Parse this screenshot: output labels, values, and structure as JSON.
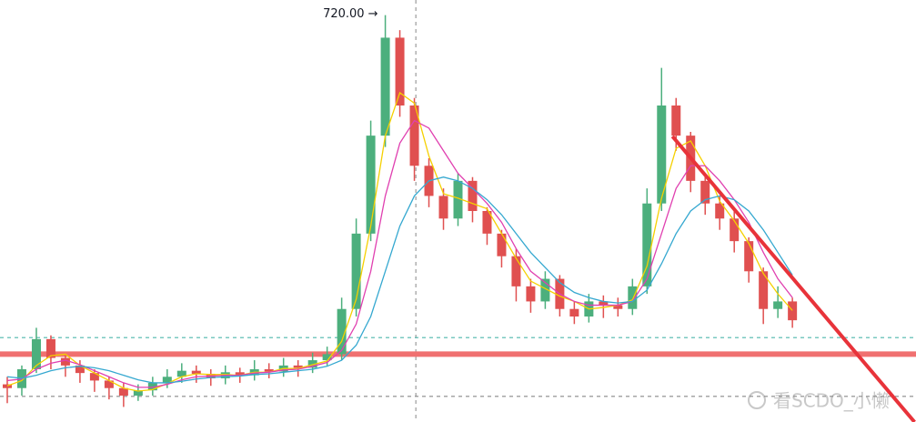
{
  "chart_data": {
    "type": "candlestick",
    "xlim": [
      0,
      63
    ],
    "ylim": [
      180,
      740
    ],
    "up_color": "#4caf7d",
    "down_color": "#e05050",
    "open": [
      230,
      225,
      250,
      290,
      265,
      255,
      245,
      235,
      225,
      215,
      222,
      232,
      240,
      248,
      244,
      238,
      246,
      242,
      250,
      247,
      255,
      252,
      262,
      270,
      330,
      430,
      560,
      690,
      600,
      520,
      480,
      450,
      500,
      460,
      430,
      400,
      360,
      340,
      370,
      330,
      320,
      340,
      335,
      330,
      360,
      470,
      600,
      560,
      500,
      470,
      450,
      420,
      380,
      330,
      340
    ],
    "high": [
      240,
      255,
      305,
      295,
      270,
      262,
      250,
      240,
      232,
      230,
      240,
      250,
      258,
      255,
      250,
      255,
      252,
      262,
      258,
      265,
      262,
      272,
      280,
      345,
      450,
      580,
      720,
      700,
      610,
      530,
      490,
      510,
      505,
      465,
      435,
      410,
      370,
      380,
      375,
      340,
      350,
      348,
      345,
      370,
      490,
      650,
      610,
      565,
      510,
      480,
      460,
      425,
      385,
      360,
      345
    ],
    "low": [
      205,
      215,
      245,
      250,
      240,
      232,
      220,
      210,
      200,
      208,
      215,
      225,
      232,
      232,
      228,
      230,
      232,
      235,
      238,
      240,
      240,
      245,
      255,
      262,
      320,
      420,
      545,
      585,
      500,
      465,
      435,
      440,
      445,
      415,
      385,
      340,
      325,
      330,
      320,
      310,
      312,
      318,
      320,
      322,
      350,
      460,
      540,
      485,
      455,
      435,
      405,
      365,
      310,
      318,
      305
    ],
    "close": [
      225,
      250,
      290,
      265,
      255,
      245,
      235,
      225,
      215,
      222,
      232,
      240,
      248,
      244,
      238,
      246,
      242,
      250,
      247,
      255,
      252,
      262,
      270,
      330,
      430,
      560,
      690,
      600,
      520,
      480,
      450,
      500,
      460,
      430,
      400,
      360,
      340,
      370,
      330,
      320,
      340,
      335,
      330,
      360,
      470,
      600,
      560,
      500,
      470,
      450,
      420,
      380,
      330,
      340,
      315
    ],
    "series": [
      {
        "color": "#f5d000",
        "values": [
          228,
          235,
          255,
          268,
          270,
          255,
          245,
          235,
          225,
          221,
          223,
          231,
          240,
          244,
          243,
          243,
          242,
          246,
          246,
          251,
          251,
          256,
          261,
          287,
          343,
          440,
          560,
          617,
          603,
          533,
          483,
          477,
          470,
          463,
          430,
          397,
          367,
          357,
          347,
          340,
          330,
          332,
          335,
          342,
          387,
          477,
          543,
          553,
          520,
          473,
          447,
          417,
          377,
          350,
          328
        ]
      },
      {
        "color": "#e040b0",
        "values": [
          235,
          237,
          250,
          258,
          262,
          256,
          248,
          240,
          232,
          226,
          226,
          230,
          236,
          240,
          241,
          242,
          242,
          245,
          246,
          249,
          250,
          254,
          259,
          275,
          310,
          380,
          480,
          550,
          580,
          570,
          540,
          510,
          490,
          470,
          445,
          410,
          380,
          365,
          350,
          340,
          335,
          335,
          335,
          340,
          370,
          430,
          490,
          520,
          520,
          500,
          475,
          445,
          405,
          370,
          345
        ]
      },
      {
        "color": "#35a8d0",
        "values": [
          240,
          238,
          242,
          248,
          252,
          254,
          252,
          248,
          242,
          236,
          232,
          232,
          234,
          237,
          239,
          240,
          241,
          243,
          244,
          246,
          248,
          250,
          254,
          262,
          282,
          320,
          380,
          440,
          480,
          500,
          505,
          500,
          490,
          475,
          455,
          430,
          405,
          385,
          365,
          352,
          345,
          340,
          338,
          340,
          355,
          390,
          430,
          460,
          475,
          480,
          475,
          460,
          435,
          405,
          375
        ]
      }
    ],
    "hlines": [
      {
        "value": 270,
        "color": "#f07070",
        "style": "solid"
      },
      {
        "value": 292,
        "color": "#4db6ac",
        "style": "dashed"
      },
      {
        "value": 214,
        "color": "#888888",
        "style": "dashed"
      }
    ],
    "trendline": {
      "color": "#e8333a",
      "x": [
        46.25,
        62.9
      ],
      "values": [
        559,
        180
      ]
    },
    "crosshair_x": 28.6,
    "high_marker": {
      "x": 26,
      "value": 720,
      "label": "720.00 →"
    },
    "watermark": "看SCDO_小懒"
  }
}
